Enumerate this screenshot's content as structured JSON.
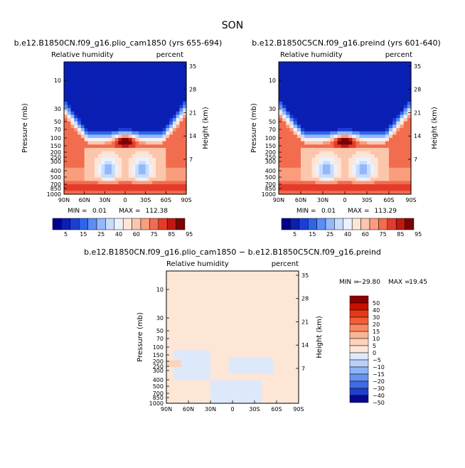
{
  "page": {
    "season": "SON"
  },
  "chart_data": [
    {
      "id": "p1",
      "type": "heatmap",
      "case": "b.e12.B1850CN.f09_g16.plio_cam1850 (yrs 655-694)",
      "variable": "Relative humidity",
      "units": "percent",
      "xlabel": "",
      "ylabel": "Pressure (mb)",
      "ylabel_right": "Height (km)",
      "x_ticks": [
        "90N",
        "60N",
        "30N",
        "0",
        "30S",
        "60S",
        "90S"
      ],
      "y_ticks": [
        "10",
        "30",
        "50",
        "70",
        "100",
        "150",
        "200",
        "250",
        "300",
        "400",
        "500",
        "700",
        "850",
        "1000"
      ],
      "y_right_ticks": [
        "35",
        "28",
        "21",
        "14",
        "7"
      ],
      "min_label": "MIN =",
      "min": "0.01",
      "max_label": "MAX =",
      "max": "112.38",
      "levels": [
        "5",
        "15",
        "25",
        "40",
        "60",
        "75",
        "85",
        "95"
      ]
    },
    {
      "id": "p2",
      "type": "heatmap",
      "case": "b.e12.B1850C5CN.f09_g16.preind (yrs 601-640)",
      "variable": "Relative humidity",
      "units": "percent",
      "xlabel": "",
      "ylabel": "Pressure (mb)",
      "ylabel_right": "Height (km)",
      "x_ticks": [
        "90N",
        "60N",
        "30N",
        "0",
        "30S",
        "60S",
        "90S"
      ],
      "y_ticks": [
        "10",
        "30",
        "50",
        "70",
        "100",
        "150",
        "200",
        "250",
        "300",
        "400",
        "500",
        "700",
        "850",
        "1000"
      ],
      "y_right_ticks": [
        "35",
        "28",
        "21",
        "14",
        "7"
      ],
      "min_label": "MIN =",
      "min": "0.01",
      "max_label": "MAX =",
      "max": "113.29",
      "levels": [
        "5",
        "15",
        "25",
        "40",
        "60",
        "75",
        "85",
        "95"
      ]
    },
    {
      "id": "p3",
      "type": "heatmap",
      "case": "b.e12.B1850CN.f09_g16.plio_cam1850 − b.e12.B1850C5CN.f09_g16.preind",
      "variable": "Relative humidity",
      "units": "percent",
      "xlabel": "",
      "ylabel": "Pressure (mb)",
      "ylabel_right": "Height (km)",
      "x_ticks": [
        "90N",
        "60N",
        "30N",
        "0",
        "30S",
        "60S",
        "90S"
      ],
      "y_ticks": [
        "10",
        "30",
        "50",
        "70",
        "100",
        "150",
        "200",
        "250",
        "300",
        "400",
        "500",
        "700",
        "850",
        "1000"
      ],
      "y_right_ticks": [
        "35",
        "28",
        "21",
        "14",
        "7"
      ],
      "min_label": "MIN =",
      "min": "−29.80",
      "max_label": "MAX =",
      "max": "19.45",
      "levels": [
        "50",
        "40",
        "30",
        "20",
        "15",
        "10",
        "5",
        "0",
        "−5",
        "−10",
        "−15",
        "−20",
        "−30",
        "−40",
        "−50"
      ]
    }
  ],
  "colors": {
    "rh": [
      "#00008e",
      "#0a1fb3",
      "#1b3fd6",
      "#2f64ea",
      "#5c8df4",
      "#93b8fa",
      "#c7dcfd",
      "#eaf2ff",
      "#fde6d8",
      "#fcc6ad",
      "#f99d7d",
      "#f26c4f",
      "#e33c2a",
      "#c01812",
      "#7a0403"
    ],
    "diff": [
      "#8c0000",
      "#c81000",
      "#e23a16",
      "#f25c36",
      "#f98963",
      "#fbb494",
      "#fdd3bc",
      "#fde6d6",
      "#dde9fb",
      "#b8d0fb",
      "#8eb2f6",
      "#6792ee",
      "#3f6ce3",
      "#1d40ca",
      "#08078f"
    ]
  }
}
